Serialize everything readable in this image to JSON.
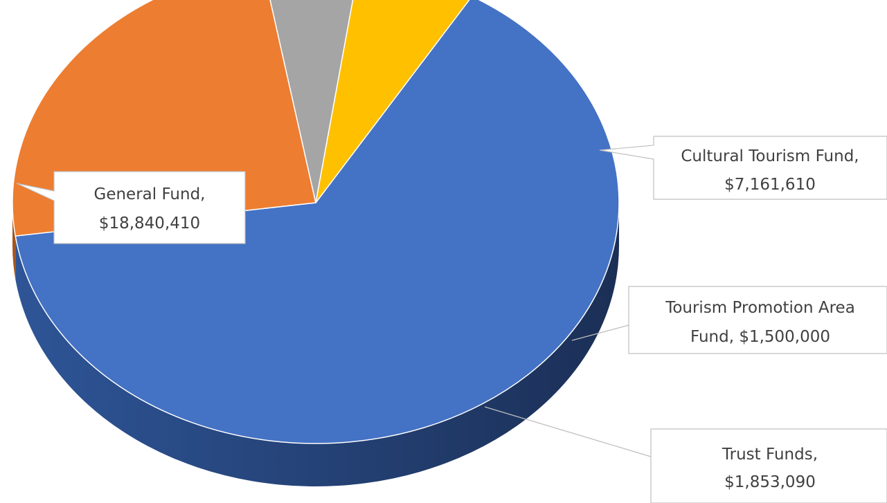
{
  "chart_data": {
    "type": "pie",
    "style": "3d",
    "title": "",
    "slices": [
      {
        "name": "General Fund",
        "value": 18840410,
        "label_line1": "General Fund,",
        "label_line2": "$18,840,410",
        "color": "#4472C4",
        "side_color": "#2B4D89"
      },
      {
        "name": "Cultural Tourism Fund",
        "value": 7161610,
        "label_line1": "Cultural Tourism Fund,",
        "label_line2": "$7,161,610",
        "color": "#ED7D31",
        "side_color": "#A5541D"
      },
      {
        "name": "Tourism Promotion Area Fund",
        "value": 1500000,
        "label_line1": "Tourism Promotion Area",
        "label_line2": "Fund,  $1,500,000",
        "color": "#A5A5A5",
        "side_color": "#454545"
      },
      {
        "name": "Trust Funds",
        "value": 1853090,
        "label_line1": "Trust Funds,",
        "label_line2": "$1,853,090",
        "color": "#FFC000",
        "side_color": "#6E5200"
      }
    ]
  }
}
